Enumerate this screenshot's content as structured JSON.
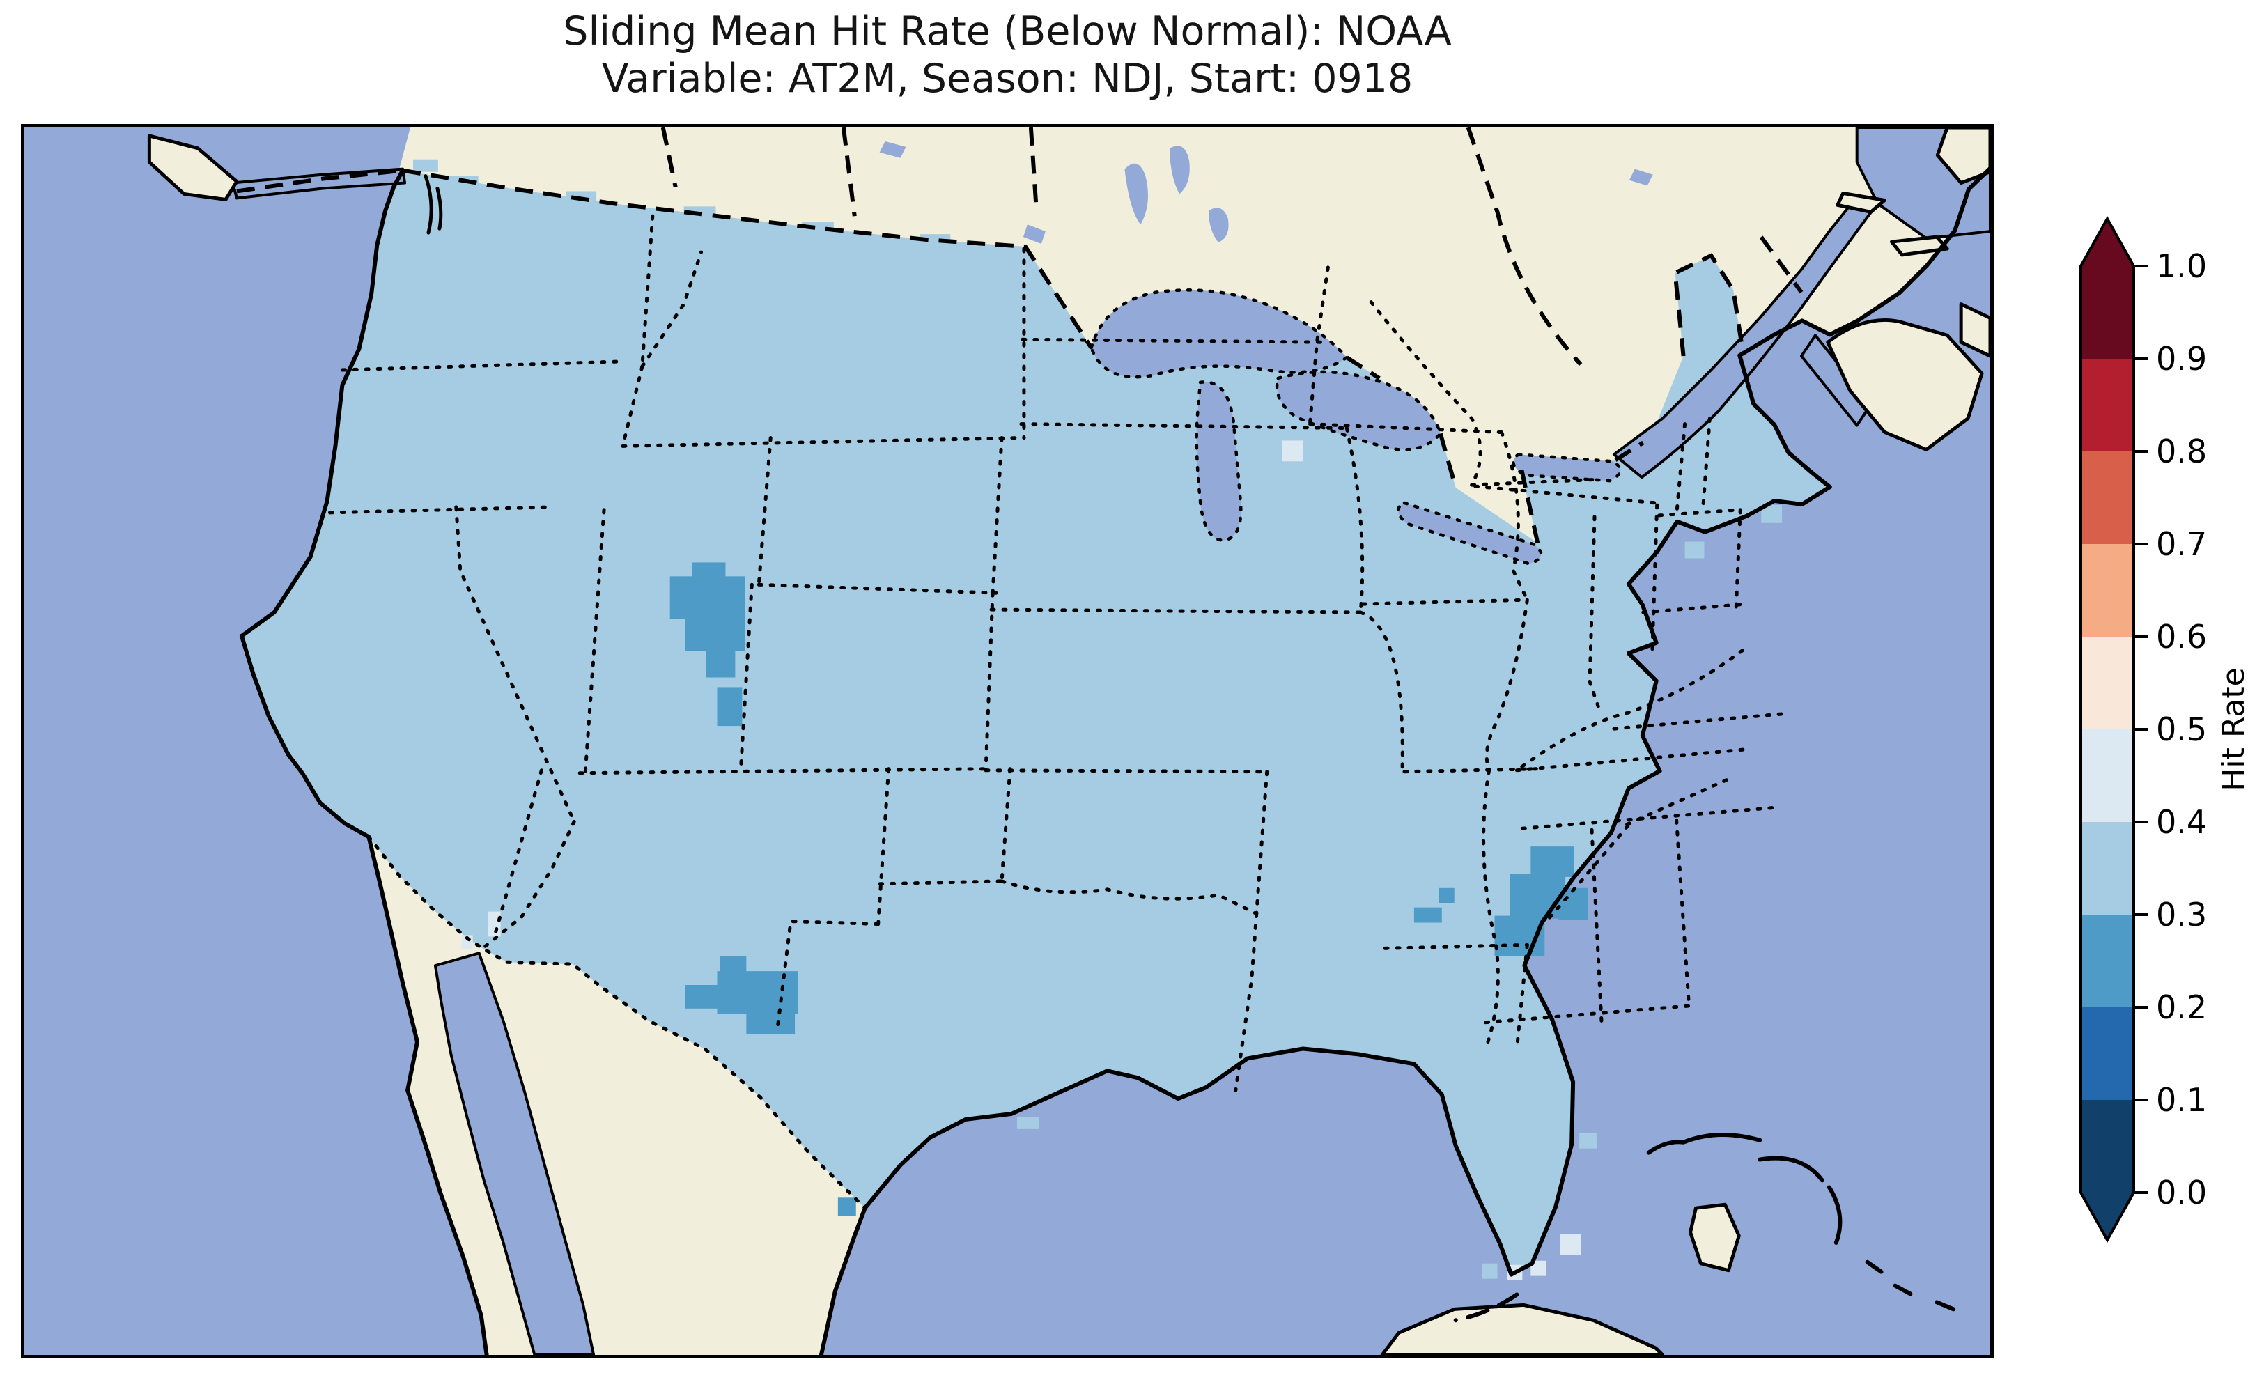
{
  "figure": {
    "title_line1": "Sliding Mean Hit Rate (Below Normal): NOAA",
    "title_line2": "Variable: AT2M, Season: NDJ, Start: 0918"
  },
  "colorbar": {
    "label": "Hit Rate",
    "ticks_top_to_bottom": [
      "1.0",
      "0.9",
      "0.8",
      "0.7",
      "0.6",
      "0.5",
      "0.4",
      "0.3",
      "0.2",
      "0.1",
      "0.0"
    ],
    "bins_top_to_bottom": [
      {
        "range": "0.9-1.0",
        "color": "#670a20"
      },
      {
        "range": "0.8-0.9",
        "color": "#b41f2f"
      },
      {
        "range": "0.7-0.8",
        "color": "#d8604b"
      },
      {
        "range": "0.6-0.7",
        "color": "#f5ab84"
      },
      {
        "range": "0.5-0.6",
        "color": "#f9e7da"
      },
      {
        "range": "0.4-0.5",
        "color": "#dde9f2"
      },
      {
        "range": "0.3-0.4",
        "color": "#a5cce2"
      },
      {
        "range": "0.2-0.3",
        "color": "#4f9bc7"
      },
      {
        "range": "0.1-0.2",
        "color": "#2468ad"
      },
      {
        "range": "0.0-0.1",
        "color": "#11406b"
      }
    ],
    "extend": {
      "over_color": "#670a20",
      "under_color": "#11406b"
    }
  },
  "map": {
    "colors": {
      "background": "#ffffff",
      "ocean": "#93a9d8",
      "land": "#f1eedb",
      "coastline": "#000000",
      "us_dominant_fill": "#a5cce2",
      "anomaly_02_03": "#4f9bc7",
      "anomaly_04_05": "#dde9f2"
    },
    "dominant_bin": "0.3-0.4",
    "anomalies": [
      {
        "name": "wyoming-colorado-cluster",
        "bin": "0.2-0.3",
        "color": "#4f9bc7",
        "cells": [
          [
            930,
            648,
            108,
            62
          ],
          [
            952,
            706,
            86,
            50
          ],
          [
            982,
            752,
            42,
            42
          ],
          [
            962,
            628,
            48,
            22
          ]
        ]
      },
      {
        "name": "colorado-cell",
        "bin": "0.2-0.3",
        "color": "#4f9bc7",
        "cells": [
          [
            998,
            808,
            36,
            56
          ]
        ]
      },
      {
        "name": "west-texas-cluster",
        "bin": "0.2-0.3",
        "color": "#4f9bc7",
        "cells": [
          [
            998,
            1218,
            116,
            62
          ],
          [
            1040,
            1275,
            70,
            34
          ],
          [
            952,
            1238,
            50,
            34
          ],
          [
            1002,
            1196,
            38,
            26
          ]
        ]
      },
      {
        "name": "rio-grande-valley-cell",
        "bin": "0.2-0.3",
        "color": "#4f9bc7",
        "cells": [
          [
            1172,
            1545,
            26,
            26
          ]
        ]
      },
      {
        "name": "georgia-cells",
        "bin": "0.2-0.3",
        "color": "#4f9bc7",
        "cells": [
          [
            2038,
            1098,
            22,
            22
          ],
          [
            2002,
            1126,
            40,
            22
          ]
        ]
      },
      {
        "name": "carolina-coast-cluster",
        "bin": "0.2-0.3",
        "color": "#4f9bc7",
        "cells": [
          [
            2170,
            1038,
            62,
            44
          ],
          [
            2140,
            1078,
            80,
            64
          ],
          [
            2118,
            1138,
            72,
            58
          ],
          [
            2210,
            1098,
            42,
            46
          ]
        ]
      },
      {
        "name": "south-dakota-cell",
        "bin": "0.4-0.5",
        "color": "#dde9f2",
        "cells": [
          [
            1812,
            452,
            30,
            30
          ]
        ]
      },
      {
        "name": "new-mexico-border-cells",
        "bin": "0.4-0.5",
        "color": "#dde9f2",
        "cells": [
          [
            668,
            1132,
            18,
            36
          ],
          [
            630,
            1166,
            16,
            20
          ]
        ]
      },
      {
        "name": "florida-keys-pale-cells",
        "bin": "0.4-0.5",
        "color": "#dde9f2",
        "cells": [
          [
            2136,
            1642,
            22,
            22
          ],
          [
            2170,
            1636,
            22,
            22
          ],
          [
            2212,
            1598,
            30,
            30
          ]
        ]
      },
      {
        "name": "florida-keys-light-cell",
        "bin": "0.3-0.4",
        "color": "#a5cce2",
        "cells": [
          [
            2100,
            1640,
            22,
            22
          ]
        ]
      }
    ]
  },
  "chart_data": {
    "type": "heatmap",
    "subtype": "geographic-choropleth (CONUS, Lambert-style projection)",
    "title": "Sliding Mean Hit Rate (Below Normal): NOAA",
    "subtitle": "Variable: AT2M, Season: NDJ, Start: 0918",
    "colorbar_label": "Hit Rate",
    "colorbar_ticks": [
      0.0,
      0.1,
      0.2,
      0.3,
      0.4,
      0.5,
      0.6,
      0.7,
      0.8,
      0.9,
      1.0
    ],
    "bin_edges": [
      0.0,
      0.1,
      0.2,
      0.3,
      0.4,
      0.5,
      0.6,
      0.7,
      0.8,
      0.9,
      1.0
    ],
    "bin_colors_bottom_to_top": [
      "#11406b",
      "#2468ad",
      "#4f9bc7",
      "#a5cce2",
      "#dde9f2",
      "#f9e7da",
      "#f5ab84",
      "#d8604b",
      "#b41f2f",
      "#670a20"
    ],
    "colorbar_extend": "both",
    "legend_position": "right vertical colorbar",
    "grid": "off",
    "region_values": [
      {
        "region": "CONUS dominant field",
        "hit_rate_bin": "0.3-0.4"
      },
      {
        "region": "SE Wyoming / NW Colorado cluster",
        "hit_rate_bin": "0.2-0.3"
      },
      {
        "region": "NW Colorado single cell",
        "hit_rate_bin": "0.2-0.3"
      },
      {
        "region": "West Texas / Pecos cluster",
        "hit_rate_bin": "0.2-0.3"
      },
      {
        "region": "Lower Rio Grande Valley cell",
        "hit_rate_bin": "0.2-0.3"
      },
      {
        "region": "Central Georgia cells",
        "hit_rate_bin": "0.2-0.3"
      },
      {
        "region": "South Carolina - Georgia coast cluster",
        "hit_rate_bin": "0.2-0.3"
      },
      {
        "region": "SE South Dakota cell",
        "hit_rate_bin": "0.4-0.5"
      },
      {
        "region": "Southern New Mexico border cells",
        "hit_rate_bin": "0.4-0.5"
      },
      {
        "region": "South Florida / Keys cells",
        "hit_rate_bin": "0.4-0.5 and 0.3-0.4"
      }
    ]
  }
}
